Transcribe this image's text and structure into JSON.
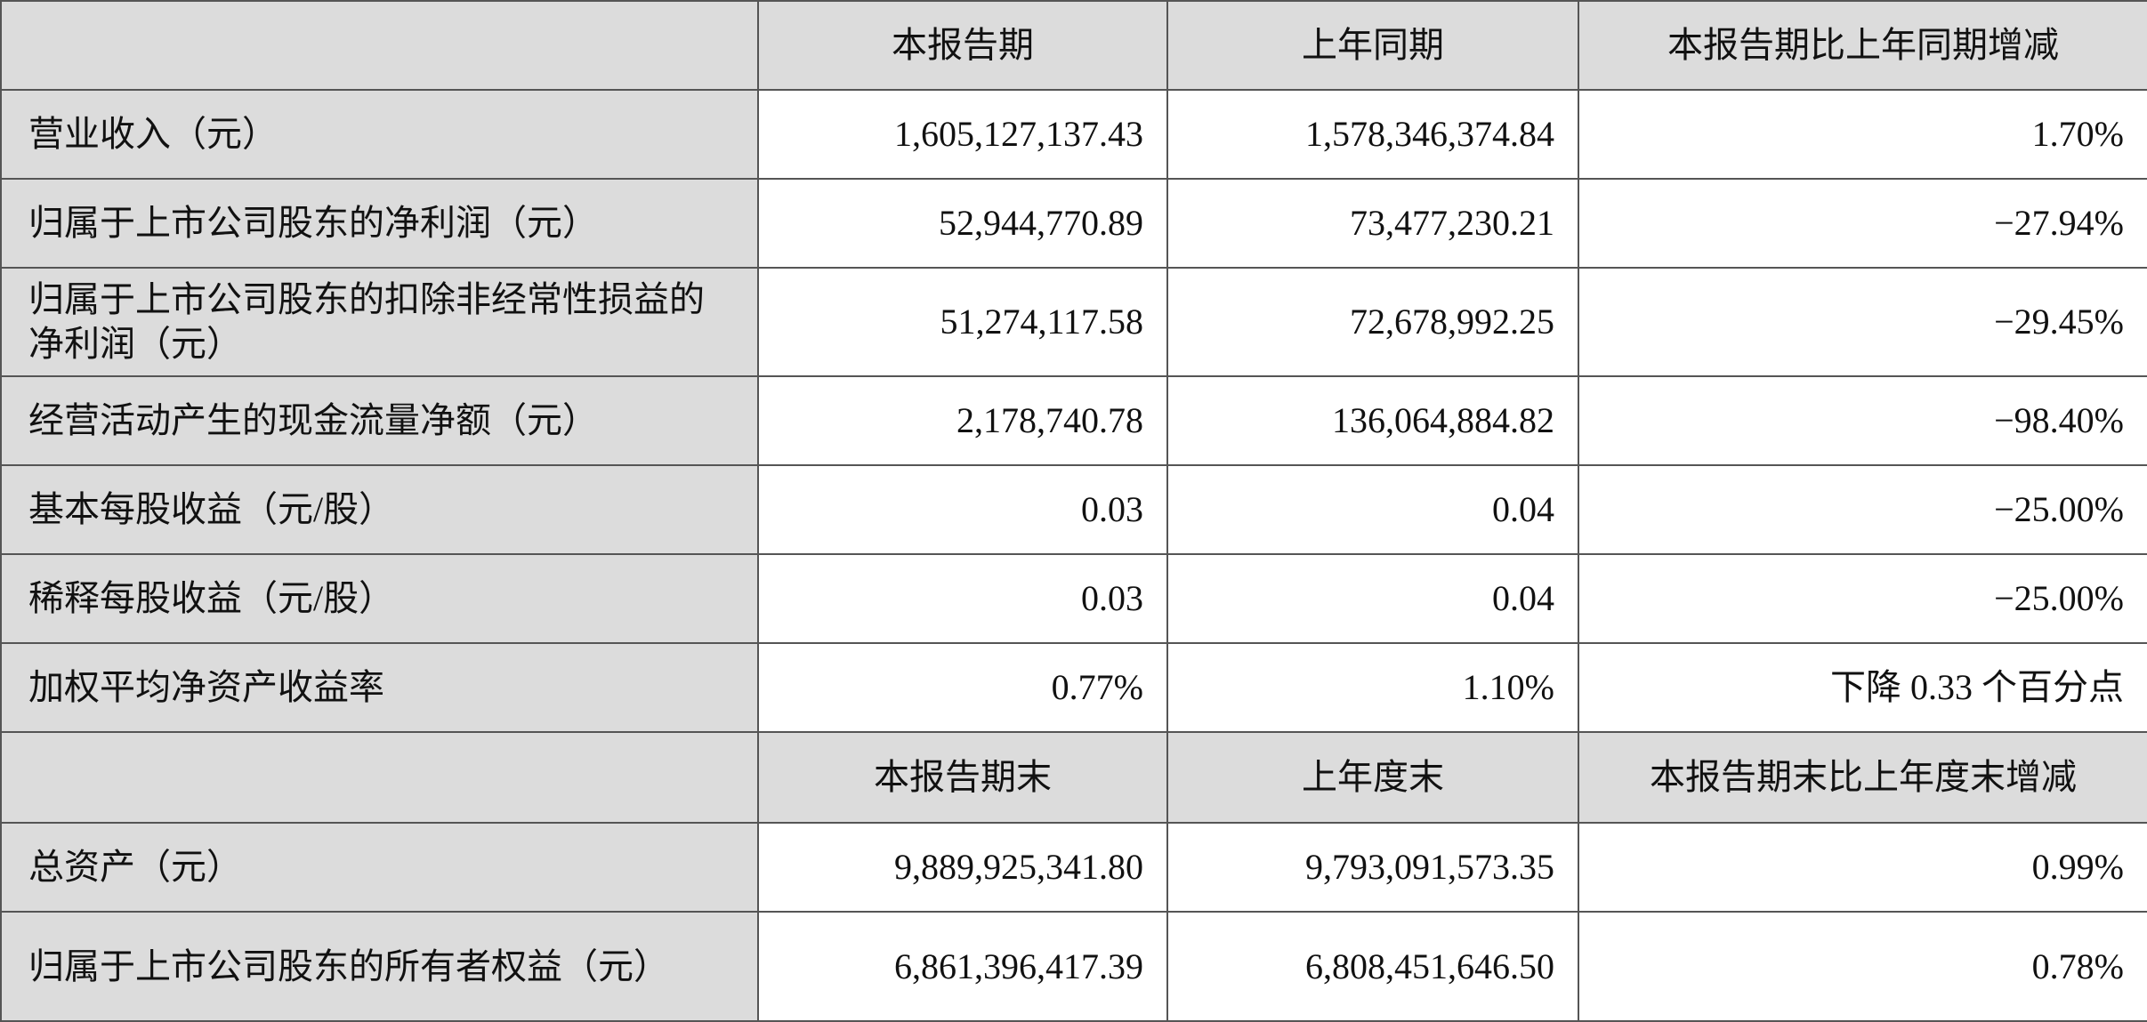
{
  "header1": [
    "",
    "本报告期",
    "上年同期",
    "本报告期比上年同期增减"
  ],
  "rows1": [
    {
      "label": "营业收入（元）",
      "current": "1,605,127,137.43",
      "prior": "1,578,346,374.84",
      "change": "1.70%"
    },
    {
      "label": "归属于上市公司股东的净利润（元）",
      "current": "52,944,770.89",
      "prior": "73,477,230.21",
      "change": "−27.94%"
    },
    {
      "label": "归属于上市公司股东的扣除非经常性损益的净利润（元）",
      "current": "51,274,117.58",
      "prior": "72,678,992.25",
      "change": "−29.45%"
    },
    {
      "label": "经营活动产生的现金流量净额（元）",
      "current": "2,178,740.78",
      "prior": "136,064,884.82",
      "change": "−98.40%"
    },
    {
      "label": "基本每股收益（元/股）",
      "current": "0.03",
      "prior": "0.04",
      "change": "−25.00%"
    },
    {
      "label": "稀释每股收益（元/股）",
      "current": "0.03",
      "prior": "0.04",
      "change": "−25.00%"
    },
    {
      "label": "加权平均净资产收益率",
      "current": "0.77%",
      "prior": "1.10%",
      "change": "下降 0.33 个百分点"
    }
  ],
  "header2": [
    "",
    "本报告期末",
    "上年度末",
    "本报告期末比上年度末增减"
  ],
  "rows2": [
    {
      "label": "总资产（元）",
      "current": "9,889,925,341.80",
      "prior": "9,793,091,573.35",
      "change": "0.99%"
    },
    {
      "label": "归属于上市公司股东的所有者权益（元）",
      "current": "6,861,396,417.39",
      "prior": "6,808,451,646.50",
      "change": "0.78%"
    }
  ]
}
